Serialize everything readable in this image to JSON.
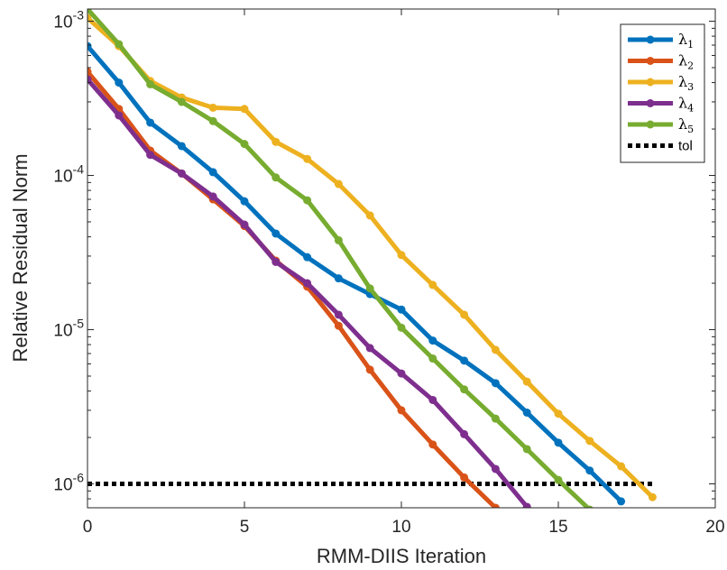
{
  "chart_data": {
    "type": "line",
    "title": "",
    "xlabel": "RMM-DIIS Iteration",
    "ylabel": "Relative Residual Norm",
    "xlim": [
      0,
      20
    ],
    "ylim": [
      7e-07,
      0.0012
    ],
    "yscale": "log",
    "xticks": [
      0,
      5,
      10,
      15,
      20
    ],
    "xtick_labels": [
      "0",
      "5",
      "10",
      "15",
      "20"
    ],
    "yticks": [
      1e-06,
      1e-05,
      0.0001,
      0.001
    ],
    "ytick_labels": [
      {
        "base": "10",
        "exp": "-6"
      },
      {
        "base": "10",
        "exp": "-5"
      },
      {
        "base": "10",
        "exp": "-4"
      },
      {
        "base": "10",
        "exp": "-3"
      }
    ],
    "grid": false,
    "legend_position": "top-right",
    "series": [
      {
        "name": "λ",
        "sub": "1",
        "color": "#0072BD",
        "x": [
          0,
          1,
          2,
          3,
          4,
          5,
          6,
          7,
          8,
          9,
          10,
          11,
          12,
          13,
          14,
          15,
          16,
          17
        ],
        "y": [
          0.00069,
          0.0004,
          0.00022,
          0.000155,
          0.000105,
          6.8e-05,
          4.2e-05,
          2.95e-05,
          2.15e-05,
          1.7e-05,
          1.35e-05,
          8.5e-06,
          6.3e-06,
          4.5e-06,
          2.9e-06,
          1.85e-06,
          1.22e-06,
          7.7e-07
        ]
      },
      {
        "name": "λ",
        "sub": "2",
        "color": "#D95319",
        "x": [
          0,
          1,
          2,
          3,
          4,
          5,
          6,
          7,
          8,
          9,
          10,
          11,
          12,
          13
        ],
        "y": [
          0.00047,
          0.00027,
          0.000145,
          0.000103,
          7e-05,
          4.7e-05,
          2.8e-05,
          1.9e-05,
          1.06e-05,
          5.5e-06,
          3e-06,
          1.8e-06,
          1.1e-06,
          7e-07
        ]
      },
      {
        "name": "λ",
        "sub": "3",
        "color": "#EDB120",
        "x": [
          0,
          1,
          2,
          3,
          4,
          5,
          6,
          7,
          8,
          9,
          10,
          11,
          12,
          13,
          14,
          15,
          16,
          17,
          18
        ],
        "y": [
          0.00105,
          0.00069,
          0.00041,
          0.00032,
          0.000275,
          0.00027,
          0.000165,
          0.000128,
          8.8e-05,
          5.5e-05,
          3.05e-05,
          1.95e-05,
          1.25e-05,
          7.4e-06,
          4.6e-06,
          2.85e-06,
          1.9e-06,
          1.3e-06,
          8.2e-07
        ]
      },
      {
        "name": "λ",
        "sub": "4",
        "color": "#7E2F8E",
        "x": [
          0,
          1,
          2,
          3,
          4,
          5,
          6,
          7,
          8,
          9,
          10,
          11,
          12,
          13,
          14
        ],
        "y": [
          0.00042,
          0.000245,
          0.000136,
          0.000103,
          7.3e-05,
          4.8e-05,
          2.75e-05,
          2e-05,
          1.25e-05,
          7.6e-06,
          5.2e-06,
          3.5e-06,
          2.1e-06,
          1.25e-06,
          7.1e-07
        ]
      },
      {
        "name": "λ",
        "sub": "5",
        "color": "#77AC30",
        "x": [
          0,
          1,
          2,
          3,
          4,
          5,
          6,
          7,
          8,
          9,
          10,
          11,
          12,
          13,
          14,
          15,
          16
        ],
        "y": [
          0.0012,
          0.00071,
          0.00039,
          0.0003,
          0.000225,
          0.00016,
          9.7e-05,
          6.9e-05,
          3.8e-05,
          1.85e-05,
          1.03e-05,
          6.5e-06,
          4.1e-06,
          2.65e-06,
          1.68e-06,
          1.06e-06,
          6.8e-07
        ]
      }
    ],
    "reference_line": {
      "name": "tol",
      "y": 1e-06,
      "x": [
        0,
        18
      ],
      "color": "#000000",
      "style": "dotted"
    }
  }
}
